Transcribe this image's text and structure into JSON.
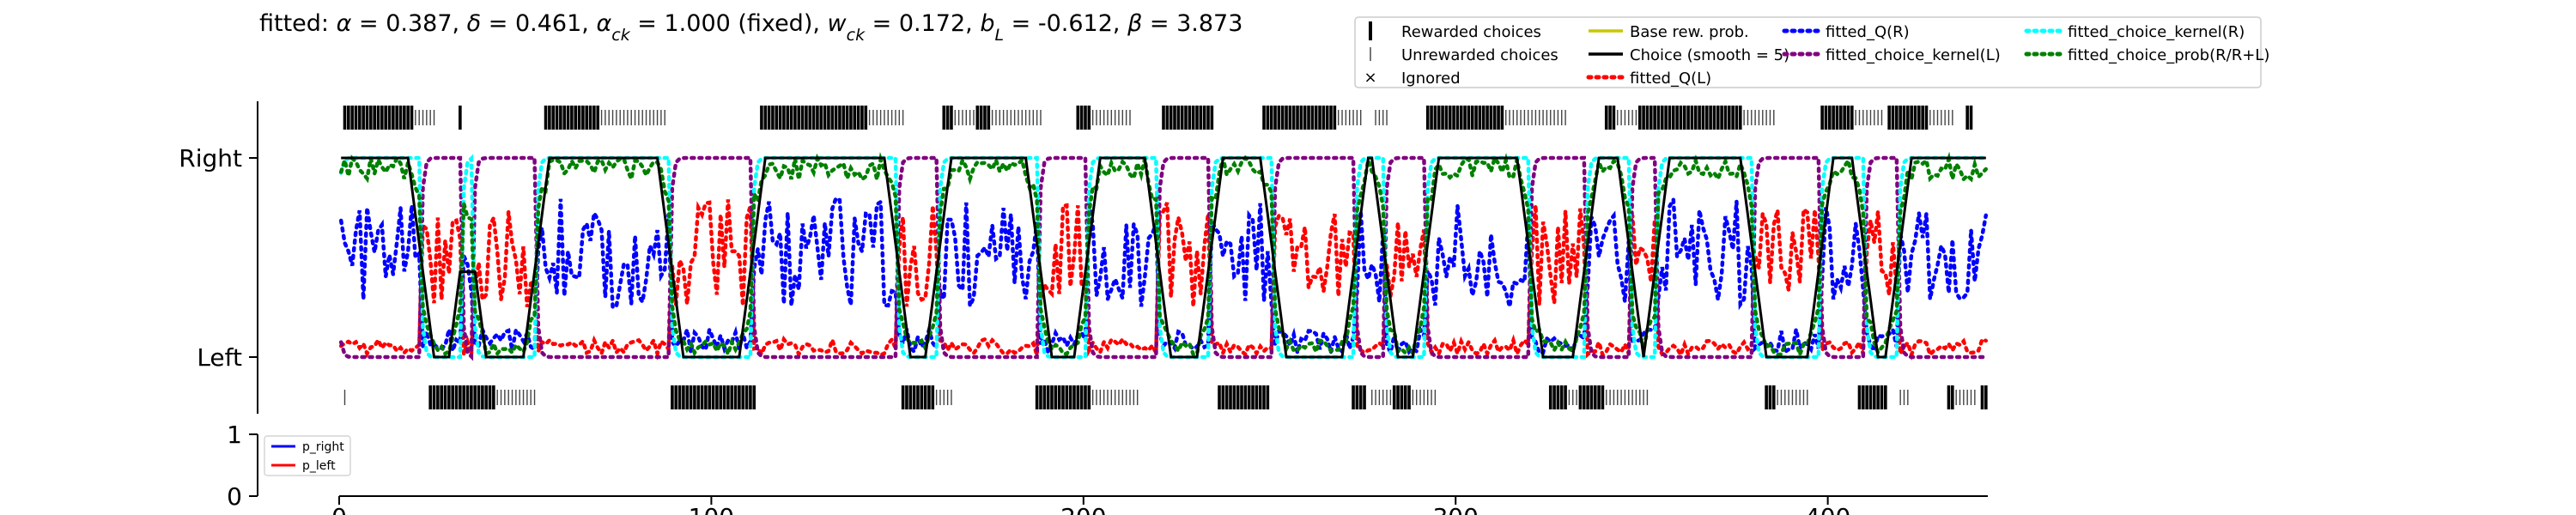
{
  "figure": {
    "title": "fitted: α = 0.387, δ = 0.461, αck = 1.000 (fixed), wck = 0.172, bL = -0.612, β = 3.873",
    "title_parts": [
      {
        "t": "fitted: "
      },
      {
        "t": "α",
        "it": true
      },
      {
        "t": " = 0.387, "
      },
      {
        "t": "δ",
        "it": true
      },
      {
        "t": " = 0.461, "
      },
      {
        "t": "α",
        "it": true
      },
      {
        "t": "ck",
        "sub": true
      },
      {
        "t": " = 1.000 (fixed), "
      },
      {
        "t": "w",
        "it": true
      },
      {
        "t": "ck",
        "sub": true
      },
      {
        "t": " = 0.172, "
      },
      {
        "t": "b",
        "it": true
      },
      {
        "t": "L",
        "sub": true
      },
      {
        "t": " = -0.612, "
      },
      {
        "t": "β",
        "it": true
      },
      {
        "t": " = 3.873"
      }
    ]
  },
  "legend": [
    {
      "label": "Rewarded choices",
      "kind": "tick-thick",
      "color": "#000000"
    },
    {
      "label": "Unrewarded choices",
      "kind": "tick-thin",
      "color": "#555555"
    },
    {
      "label": "Ignored",
      "kind": "cross",
      "color": "#e41a1c"
    },
    {
      "label": "Base rew. prob.",
      "kind": "line",
      "color": "#c8c800"
    },
    {
      "label": "Choice (smooth = 5)",
      "kind": "line",
      "color": "#000000"
    },
    {
      "label": "fitted_Q(L)",
      "kind": "dot",
      "color": "#ff0000"
    },
    {
      "label": "fitted_Q(R)",
      "kind": "dot",
      "color": "#0000ff"
    },
    {
      "label": "fitted_choice_kernel(L)",
      "kind": "dot",
      "color": "#800080"
    },
    {
      "label": "fitted_choice_kernel(R)",
      "kind": "dot",
      "color": "#00ffff"
    },
    {
      "label": "fitted_choice_prob(R/R+L)",
      "kind": "dot",
      "color": "#008000"
    }
  ],
  "chart_data": [
    {
      "type": "line",
      "name": "main",
      "xlim": [
        0,
        443
      ],
      "ylim": [
        0,
        1
      ],
      "yticks": [
        {
          "value": 0,
          "label": "Left"
        },
        {
          "value": 1,
          "label": "Right"
        }
      ],
      "right_rewarded_ranges": [
        [
          1,
          20
        ],
        [
          32,
          33
        ],
        [
          55,
          70
        ],
        [
          113,
          142
        ],
        [
          162,
          165
        ],
        [
          171,
          175
        ],
        [
          198,
          202
        ],
        [
          221,
          235
        ],
        [
          248,
          268
        ],
        [
          292,
          313
        ],
        [
          340,
          343
        ],
        [
          349,
          377
        ],
        [
          398,
          407
        ],
        [
          416,
          427
        ],
        [
          437,
          439
        ]
      ],
      "right_unrewarded_ranges": [
        [
          20,
          26
        ],
        [
          70,
          88
        ],
        [
          142,
          152
        ],
        [
          165,
          171
        ],
        [
          175,
          189
        ],
        [
          202,
          213
        ],
        [
          268,
          275
        ],
        [
          278,
          282
        ],
        [
          313,
          330
        ],
        [
          343,
          350
        ],
        [
          377,
          386
        ],
        [
          407,
          415
        ],
        [
          427,
          434
        ]
      ],
      "left_rewarded_ranges": [
        [
          24,
          42
        ],
        [
          89,
          112
        ],
        [
          151,
          160
        ],
        [
          187,
          202
        ],
        [
          236,
          250
        ],
        [
          272,
          276
        ],
        [
          283,
          288
        ],
        [
          325,
          330
        ],
        [
          333,
          340
        ],
        [
          383,
          386
        ],
        [
          408,
          416
        ],
        [
          432,
          434
        ],
        [
          441,
          443
        ]
      ],
      "left_unrewarded_ranges": [
        [
          1,
          2
        ],
        [
          42,
          53
        ],
        [
          160,
          165
        ],
        [
          202,
          215
        ],
        [
          277,
          285
        ],
        [
          288,
          295
        ],
        [
          330,
          335
        ],
        [
          340,
          352
        ],
        [
          386,
          395
        ],
        [
          419,
          422
        ],
        [
          434,
          440
        ]
      ],
      "segments": [
        [
          0,
          22,
          1
        ],
        [
          22,
          33,
          0
        ],
        [
          33,
          36,
          1
        ],
        [
          36,
          53,
          0
        ],
        [
          53,
          89,
          1
        ],
        [
          89,
          111,
          0
        ],
        [
          111,
          150,
          1
        ],
        [
          150,
          161,
          0
        ],
        [
          161,
          188,
          1
        ],
        [
          188,
          201,
          0
        ],
        [
          201,
          220,
          1
        ],
        [
          220,
          234,
          0
        ],
        [
          234,
          251,
          1
        ],
        [
          251,
          273,
          0
        ],
        [
          273,
          281,
          1
        ],
        [
          281,
          292,
          0
        ],
        [
          292,
          320,
          1
        ],
        [
          320,
          335,
          0
        ],
        [
          335,
          347,
          1
        ],
        [
          347,
          354,
          0
        ],
        [
          354,
          380,
          1
        ],
        [
          380,
          398,
          0
        ],
        [
          398,
          410,
          1
        ],
        [
          410,
          419,
          0
        ],
        [
          419,
          443,
          1
        ]
      ]
    },
    {
      "type": "line",
      "name": "rate",
      "xlim": [
        0,
        443
      ],
      "ylim": [
        0,
        1
      ],
      "yticks": [
        {
          "value": 0,
          "label": "0"
        },
        {
          "value": 1,
          "label": "1"
        }
      ],
      "xticks": [
        0,
        100,
        200,
        300,
        400
      ],
      "series": [
        {
          "name": "p_right",
          "color": "#0000ff",
          "values": []
        },
        {
          "name": "p_left",
          "color": "#ff0000",
          "values": []
        }
      ]
    }
  ]
}
